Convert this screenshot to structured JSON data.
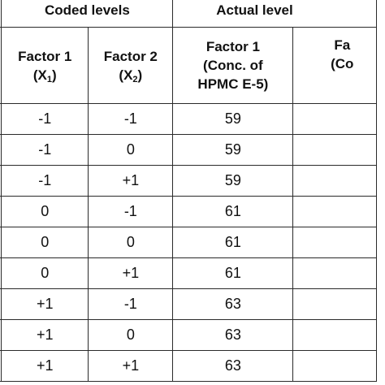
{
  "headers": {
    "coded_group": "Coded levels",
    "actual_group": "Actual level",
    "coded_factor1": {
      "line1": "Factor 1",
      "sym": "(X",
      "sub": "1",
      "close": ")"
    },
    "coded_factor2": {
      "line1": "Factor 2",
      "sym": "(X",
      "sub": "2",
      "close": ")"
    },
    "actual_factor1": {
      "line1": "Factor 1",
      "line2": "(Conc. of",
      "line3": "HPMC E-5)"
    },
    "actual_factor2": {
      "line1": "Fa",
      "line2": "(Co",
      "line3": ""
    }
  },
  "rows": [
    {
      "x1": "-1",
      "x2": "-1",
      "a1": "59"
    },
    {
      "x1": "-1",
      "x2": "0",
      "a1": "59"
    },
    {
      "x1": "-1",
      "x2": "+1",
      "a1": "59"
    },
    {
      "x1": "0",
      "x2": "-1",
      "a1": "61"
    },
    {
      "x1": "0",
      "x2": "0",
      "a1": "61"
    },
    {
      "x1": "0",
      "x2": "+1",
      "a1": "61"
    },
    {
      "x1": "+1",
      "x2": "-1",
      "a1": "63"
    },
    {
      "x1": "+1",
      "x2": "0",
      "a1": "63"
    },
    {
      "x1": "+1",
      "x2": "+1",
      "a1": "63"
    }
  ]
}
